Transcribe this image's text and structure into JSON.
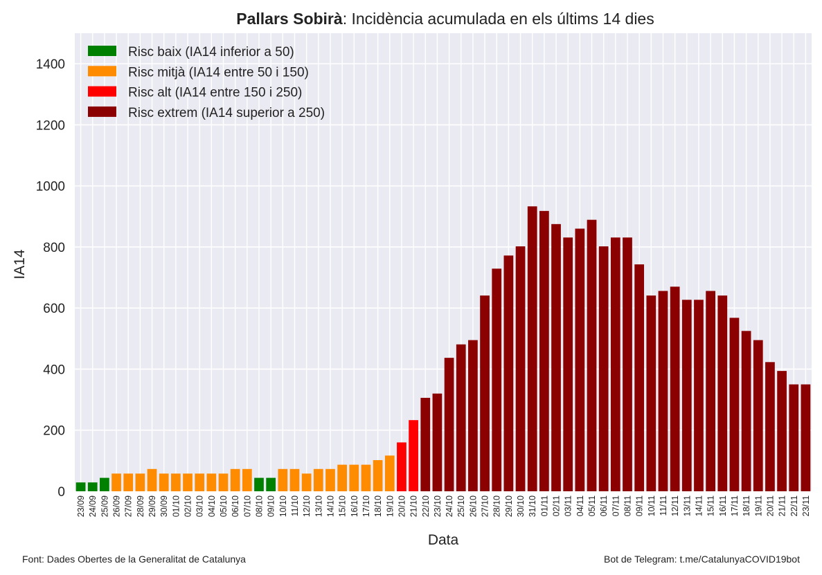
{
  "chart_data": {
    "type": "bar",
    "title_bold": "Pallars Sobirà",
    "title_rest": ": Incidència acumulada en els últims 14 dies",
    "xlabel": "Data",
    "ylabel": "IA14",
    "ylim": [
      0,
      1500
    ],
    "yticks": [
      0,
      200,
      400,
      600,
      800,
      1000,
      1200,
      1400
    ],
    "grid": true,
    "legend_position": "top-left",
    "legend": [
      {
        "label": "Risc baix (IA14 inferior a 50)",
        "color": "#008000"
      },
      {
        "label": "Risc mitjà (IA14 entre 50 i 150)",
        "color": "#ff8c00"
      },
      {
        "label": "Risc alt (IA14 entre 150 i 250)",
        "color": "#ff0000"
      },
      {
        "label": "Risc extrem (IA14 superior a 250)",
        "color": "#8b0000"
      }
    ],
    "categories": [
      "23/09",
      "24/09",
      "25/09",
      "26/09",
      "27/09",
      "28/09",
      "29/09",
      "30/09",
      "01/10",
      "02/10",
      "03/10",
      "04/10",
      "05/10",
      "06/10",
      "07/10",
      "08/10",
      "09/10",
      "10/10",
      "11/10",
      "12/10",
      "13/10",
      "14/10",
      "15/10",
      "16/10",
      "17/10",
      "18/10",
      "19/10",
      "20/10",
      "21/10",
      "22/10",
      "23/10",
      "24/10",
      "25/10",
      "26/10",
      "27/10",
      "28/10",
      "29/10",
      "30/10",
      "31/10",
      "01/11",
      "02/11",
      "03/11",
      "04/11",
      "05/11",
      "06/11",
      "07/11",
      "08/11",
      "09/11",
      "10/11",
      "11/11",
      "12/11",
      "13/11",
      "14/11",
      "15/11",
      "16/11",
      "17/11",
      "18/11",
      "19/11",
      "20/11",
      "21/11",
      "22/11",
      "23/11"
    ],
    "values": [
      29,
      29,
      44,
      58,
      58,
      58,
      73,
      58,
      58,
      58,
      58,
      58,
      58,
      73,
      73,
      44,
      44,
      73,
      73,
      58,
      73,
      73,
      87,
      87,
      87,
      102,
      117,
      160,
      233,
      306,
      320,
      437,
      481,
      495,
      641,
      729,
      772,
      802,
      933,
      918,
      875,
      831,
      860,
      889,
      802,
      831,
      831,
      743,
      641,
      656,
      670,
      627,
      627,
      656,
      641,
      568,
      525,
      495,
      423,
      394,
      350,
      350
    ],
    "colors": [
      "#008000",
      "#008000",
      "#008000",
      "#ff8c00",
      "#ff8c00",
      "#ff8c00",
      "#ff8c00",
      "#ff8c00",
      "#ff8c00",
      "#ff8c00",
      "#ff8c00",
      "#ff8c00",
      "#ff8c00",
      "#ff8c00",
      "#ff8c00",
      "#008000",
      "#008000",
      "#ff8c00",
      "#ff8c00",
      "#ff8c00",
      "#ff8c00",
      "#ff8c00",
      "#ff8c00",
      "#ff8c00",
      "#ff8c00",
      "#ff8c00",
      "#ff8c00",
      "#ff0000",
      "#ff0000",
      "#8b0000",
      "#8b0000",
      "#8b0000",
      "#8b0000",
      "#8b0000",
      "#8b0000",
      "#8b0000",
      "#8b0000",
      "#8b0000",
      "#8b0000",
      "#8b0000",
      "#8b0000",
      "#8b0000",
      "#8b0000",
      "#8b0000",
      "#8b0000",
      "#8b0000",
      "#8b0000",
      "#8b0000",
      "#8b0000",
      "#8b0000",
      "#8b0000",
      "#8b0000",
      "#8b0000",
      "#8b0000",
      "#8b0000",
      "#8b0000",
      "#8b0000",
      "#8b0000",
      "#8b0000",
      "#8b0000",
      "#8b0000",
      "#8b0000"
    ],
    "plot_background": "#eaeaf2",
    "grid_color": "#ffffff"
  },
  "footer": {
    "source": "Font: Dades Obertes de la Generalitat de Catalunya",
    "bot": "Bot de Telegram: t.me/CatalunyaCOVID19bot"
  }
}
